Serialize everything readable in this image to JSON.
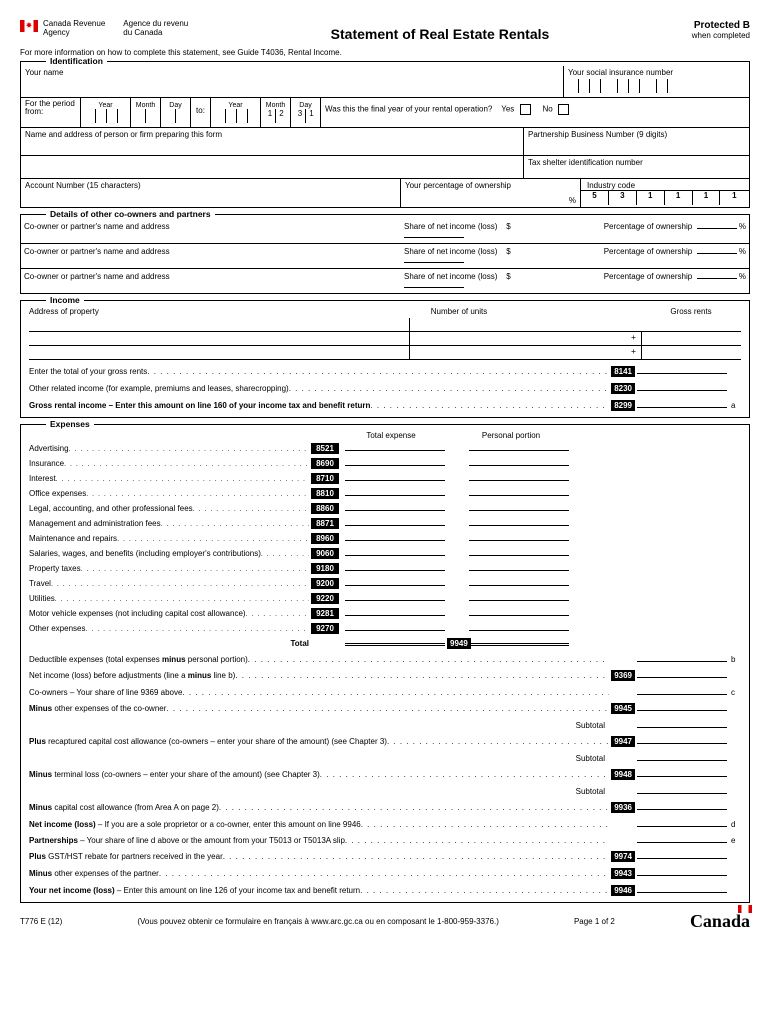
{
  "header": {
    "agency_en_line1": "Canada Revenue",
    "agency_en_line2": "Agency",
    "agency_fr_line1": "Agence du revenu",
    "agency_fr_line2": "du Canada",
    "title": "Statement of Real Estate Rentals",
    "protected": "Protected B",
    "when_completed": "when completed"
  },
  "instruction": "For more information on how to complete this statement, see Guide T4036, Rental Income.",
  "identification": {
    "title": "Identification",
    "your_name": "Your name",
    "sin": "Your social insurance number",
    "period_from": "For the period from:",
    "to": "to:",
    "year": "Year",
    "month": "Month",
    "day": "Day",
    "date_digits": [
      "1",
      "2",
      "3",
      "1"
    ],
    "final_year_q": "Was this the final year of your rental operation?",
    "yes": "Yes",
    "no": "No",
    "preparer": "Name and address of person or firm preparing this form",
    "partnership": "Partnership Business Number (9 digits)",
    "tax_shelter": "Tax shelter identification number",
    "account": "Account Number (15 characters)",
    "pct_ownership": "Your percentage of ownership",
    "pct": "%",
    "industry_code": "Industry code",
    "industry_digits": [
      "5",
      "3",
      "1",
      "1",
      "1",
      "1"
    ]
  },
  "coowners": {
    "title": "Details of other co-owners and partners",
    "name_addr": "Co-owner or partner's name and address",
    "share": "Share of net income (loss)",
    "dollar": "$",
    "pct_own": "Percentage of ownership",
    "pct": "%"
  },
  "income": {
    "title": "Income",
    "addr": "Address of property",
    "units": "Number of units",
    "gross_rents": "Gross rents",
    "plus": "+",
    "total_gross": "Enter the total of your gross rents",
    "code_8141": "8141",
    "other_related": "Other related income (for example, premiums and leases, sharecropping)",
    "code_8230": "8230",
    "gross_rental": "Gross rental income – Enter this amount on line 160 of your income tax and benefit return",
    "code_8299": "8299",
    "letter_a": "a"
  },
  "expenses": {
    "title": "Expenses",
    "total_expense": "Total expense",
    "personal_portion": "Personal portion",
    "items": [
      {
        "label": "Advertising",
        "code": "8521"
      },
      {
        "label": "Insurance",
        "code": "8690"
      },
      {
        "label": "Interest",
        "code": "8710"
      },
      {
        "label": "Office expenses",
        "code": "8810"
      },
      {
        "label": "Legal, accounting, and other professional fees",
        "code": "8860"
      },
      {
        "label": "Management and administration fees",
        "code": "8871"
      },
      {
        "label": "Maintenance and repairs",
        "code": "8960"
      },
      {
        "label": "Salaries, wages, and benefits (including employer's contributions)",
        "code": "9060"
      },
      {
        "label": "Property taxes",
        "code": "9180"
      },
      {
        "label": "Travel",
        "code": "9200"
      },
      {
        "label": "Utilities",
        "code": "9220"
      },
      {
        "label": "Motor vehicle expenses (not including capital cost allowance)",
        "code": "9281"
      },
      {
        "label": "Other expenses",
        "code": "9270"
      }
    ],
    "total": "Total",
    "code_9949": "9949",
    "lines": [
      {
        "text": "Deductible expenses (total expenses minus personal portion)",
        "bold": "minus",
        "code": "",
        "letter": "b"
      },
      {
        "text": "Net income (loss) before adjustments (line a minus line b)",
        "bold": "minus",
        "code": "9369",
        "letter": ""
      },
      {
        "text": "Co-owners – Your share of line 9369 above",
        "bold": "",
        "code": "",
        "letter": "c"
      },
      {
        "text": "Minus other expenses of the co-owner",
        "bold": "Minus",
        "code": "9945",
        "letter": ""
      },
      {
        "text": "",
        "subtotal": "Subtotal",
        "code": "",
        "letter": ""
      },
      {
        "text": "Plus recaptured capital cost allowance (co-owners – enter your share of the amount) (see Chapter 3)",
        "bold": "Plus",
        "code": "9947",
        "letter": ""
      },
      {
        "text": "",
        "subtotal": "Subtotal",
        "code": "",
        "letter": ""
      },
      {
        "text": "Minus terminal loss (co-owners – enter your share of the amount) (see Chapter 3)",
        "bold": "Minus",
        "code": "9948",
        "letter": ""
      },
      {
        "text": "",
        "subtotal": "Subtotal",
        "code": "",
        "letter": ""
      },
      {
        "text": "Minus capital cost allowance (from Area A on page 2)",
        "bold": "Minus",
        "code": "9936",
        "letter": ""
      },
      {
        "text": "Net income (loss) – If you are a sole proprietor or a co-owner, enter this amount on line 9946",
        "bold": "Net income (loss)",
        "code": "",
        "letter": "d"
      },
      {
        "text": "Partnerships – Your share of line d above or the amount from your T5013 or T5013A slip",
        "bold": "Partnerships",
        "code": "",
        "letter": "e"
      },
      {
        "text": "Plus GST/HST rebate for partners received in the year",
        "bold": "Plus",
        "code": "9974",
        "letter": ""
      },
      {
        "text": "Minus other expenses of the partner",
        "bold": "Minus",
        "code": "9943",
        "letter": ""
      },
      {
        "text": "Your net income (loss) – Enter this amount on line 126 of your income tax and benefit return",
        "bold": "Your net income (loss)",
        "code": "9946",
        "letter": ""
      }
    ]
  },
  "footer": {
    "form_id": "T776 E (12)",
    "french": "(Vous pouvez obtenir ce formulaire en français à www.arc.gc.ca ou en composant le 1-800-959-3376.)",
    "page": "Page 1 of 2",
    "canada": "Canada"
  }
}
